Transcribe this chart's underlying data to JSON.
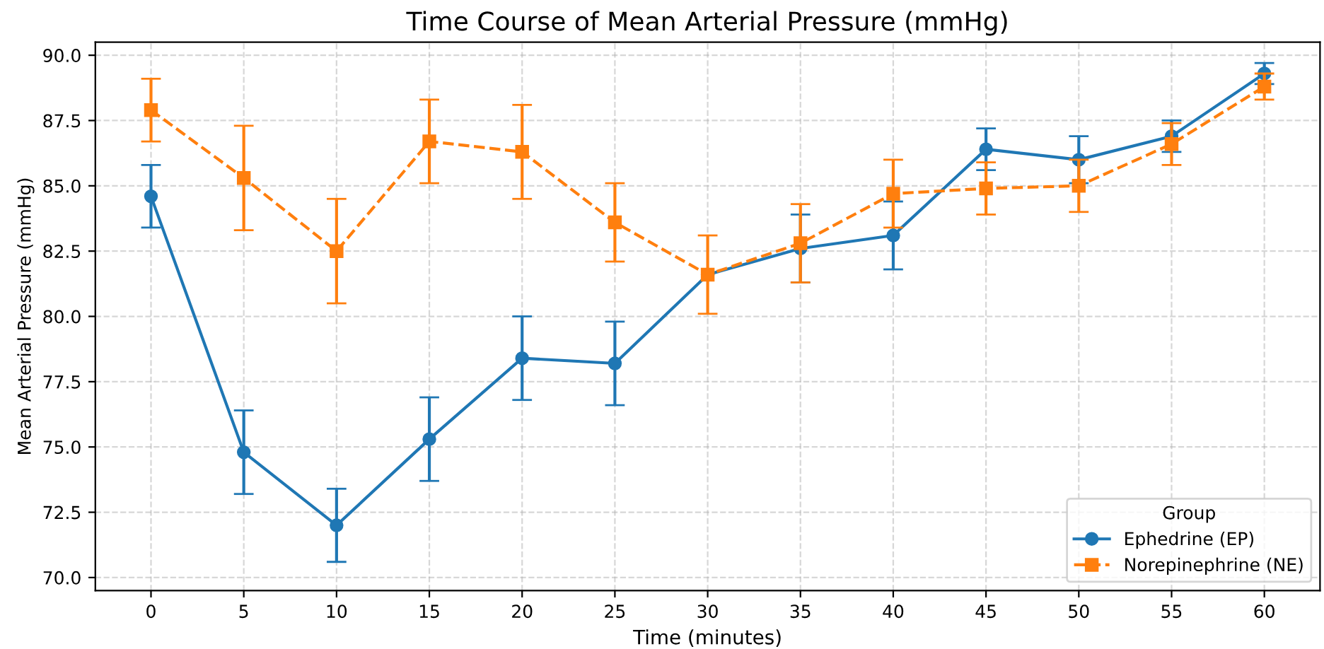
{
  "chart_data": {
    "type": "line",
    "title": "Time Course of Mean Arterial Pressure (mmHg)",
    "xlabel": "Time (minutes)",
    "ylabel": "Mean Arterial Pressure (mmHg)",
    "legend_title": "Group",
    "legend": "bottom right",
    "grid": true,
    "x": [
      0,
      5,
      10,
      15,
      20,
      25,
      30,
      35,
      40,
      45,
      50,
      55,
      60
    ],
    "xlim": [
      -3,
      63
    ],
    "ylim": [
      69.5,
      90.5
    ],
    "xticks": [
      0,
      5,
      10,
      15,
      20,
      25,
      30,
      35,
      40,
      45,
      50,
      55,
      60
    ],
    "yticks": [
      {
        "value": 70,
        "label": "70.0"
      },
      {
        "value": 72.5,
        "label": "72.5"
      },
      {
        "value": 75,
        "label": "75.0"
      },
      {
        "value": 77.5,
        "label": "77.5"
      },
      {
        "value": 80,
        "label": "80.0"
      },
      {
        "value": 82.5,
        "label": "82.5"
      },
      {
        "value": 85,
        "label": "85.0"
      },
      {
        "value": 87.5,
        "label": "87.5"
      },
      {
        "value": 90,
        "label": "90.0"
      }
    ],
    "series": [
      {
        "name": "Ephedrine (EP)",
        "color": "#1f77b4",
        "marker": "circle",
        "line_style": "solid",
        "values": [
          84.6,
          74.8,
          72.0,
          75.3,
          78.4,
          78.2,
          81.6,
          82.6,
          83.1,
          86.4,
          86.0,
          86.9,
          89.3
        ],
        "errors": [
          1.2,
          1.6,
          1.4,
          1.6,
          1.6,
          1.6,
          null,
          1.3,
          1.3,
          0.8,
          0.9,
          0.6,
          0.4
        ]
      },
      {
        "name": "Norepinephrine (NE)",
        "color": "#ff7f0e",
        "marker": "square",
        "line_style": "dashed",
        "values": [
          87.9,
          85.3,
          82.5,
          86.7,
          86.3,
          83.6,
          81.6,
          82.8,
          84.7,
          84.9,
          85.0,
          86.6,
          88.8
        ],
        "errors": [
          1.2,
          2.0,
          2.0,
          1.6,
          1.8,
          1.5,
          1.5,
          1.5,
          1.3,
          1.0,
          1.0,
          0.8,
          0.5
        ]
      }
    ]
  }
}
